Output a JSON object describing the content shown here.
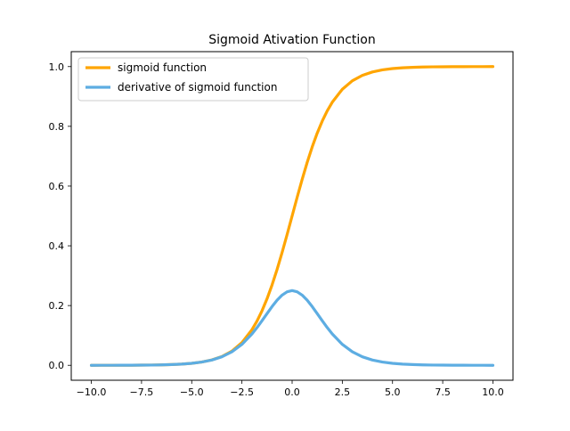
{
  "chart_data": {
    "type": "line",
    "title": "Sigmoid Ativation Function",
    "xlabel": "",
    "ylabel": "",
    "xlim": [
      -11.0,
      11.0
    ],
    "ylim": [
      -0.05,
      1.05
    ],
    "xticks": [
      -10.0,
      -7.5,
      -5.0,
      -2.5,
      0.0,
      2.5,
      5.0,
      7.5,
      10.0
    ],
    "xtick_labels": [
      "−10.0",
      "−7.5",
      "−5.0",
      "−2.5",
      "0.0",
      "2.5",
      "5.0",
      "7.5",
      "10.0"
    ],
    "yticks": [
      0.0,
      0.2,
      0.4,
      0.6,
      0.8,
      1.0
    ],
    "ytick_labels": [
      "0.0",
      "0.2",
      "0.4",
      "0.6",
      "0.8",
      "1.0"
    ],
    "grid": false,
    "legend_position": "upper-left",
    "x": [
      -10,
      -9.5,
      -9,
      -8.5,
      -8,
      -7.5,
      -7,
      -6.5,
      -6,
      -5.5,
      -5,
      -4.5,
      -4,
      -3.5,
      -3,
      -2.5,
      -2,
      -1.75,
      -1.5,
      -1.25,
      -1,
      -0.75,
      -0.5,
      -0.25,
      0,
      0.25,
      0.5,
      0.75,
      1,
      1.25,
      1.5,
      1.75,
      2,
      2.5,
      3,
      3.5,
      4,
      4.5,
      5,
      5.5,
      6,
      6.5,
      7,
      7.5,
      8,
      8.5,
      9,
      9.5,
      10
    ],
    "series": [
      {
        "name": "sigmoid function",
        "color": "#ffa500",
        "values": [
          0.0,
          0.0001,
          0.0001,
          0.0002,
          0.0003,
          0.0006,
          0.0009,
          0.0015,
          0.0025,
          0.0041,
          0.0067,
          0.011,
          0.018,
          0.0293,
          0.0474,
          0.0759,
          0.1192,
          0.148,
          0.1824,
          0.2227,
          0.2689,
          0.3208,
          0.3775,
          0.4378,
          0.5,
          0.5622,
          0.6225,
          0.6792,
          0.7311,
          0.7773,
          0.8176,
          0.852,
          0.8808,
          0.9241,
          0.9526,
          0.9707,
          0.982,
          0.989,
          0.9933,
          0.9959,
          0.9975,
          0.9985,
          0.9991,
          0.9994,
          0.9997,
          0.9998,
          0.9999,
          0.9999,
          1.0
        ]
      },
      {
        "name": "derivative of sigmoid function",
        "color": "#5dade2",
        "values": [
          0.0,
          0.0001,
          0.0001,
          0.0002,
          0.0003,
          0.0006,
          0.0009,
          0.0015,
          0.0025,
          0.0041,
          0.0066,
          0.0109,
          0.0177,
          0.0285,
          0.0452,
          0.0701,
          0.105,
          0.1261,
          0.1491,
          0.1731,
          0.1966,
          0.2179,
          0.235,
          0.2461,
          0.25,
          0.2461,
          0.235,
          0.2179,
          0.1966,
          0.1731,
          0.1491,
          0.1261,
          0.105,
          0.0701,
          0.0452,
          0.0285,
          0.0177,
          0.0109,
          0.0066,
          0.0041,
          0.0025,
          0.0015,
          0.0009,
          0.0006,
          0.0003,
          0.0002,
          0.0001,
          0.0001,
          0.0
        ]
      }
    ]
  }
}
